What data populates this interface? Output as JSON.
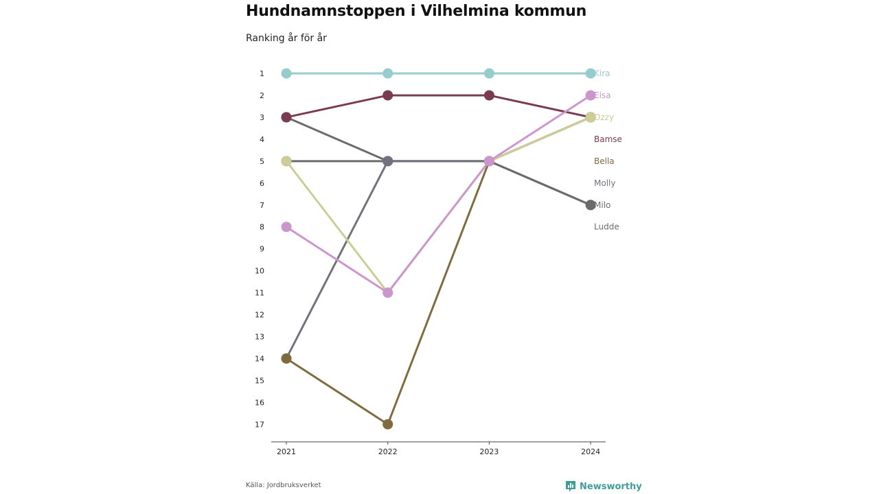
{
  "title": "Hundnamnstoppen i Vilhelmina kommun",
  "subtitle": "Ranking år för år",
  "source": "Källa: Jordbruksverket",
  "brand": {
    "name": "Newsworthy",
    "icon": "bar-chart-icon",
    "color": "#3f9e97"
  },
  "chart_data": {
    "type": "line",
    "subtype": "bump",
    "title": "Hundnamnstoppen i Vilhelmina kommun",
    "subtitle": "Ranking år för år",
    "x": [
      "2021",
      "2022",
      "2023",
      "2024"
    ],
    "y_reversed": true,
    "ylim": [
      1,
      17
    ],
    "y_ticks": [
      "1",
      "2",
      "3",
      "4",
      "5",
      "6",
      "7",
      "8",
      "9",
      "10",
      "11",
      "12",
      "13",
      "14",
      "15",
      "16",
      "17"
    ],
    "grid": false,
    "legend": "direct-labels-right",
    "series": [
      {
        "name": "Kira",
        "color": "#96cccc",
        "values": [
          1,
          1,
          1,
          1
        ]
      },
      {
        "name": "Elsa",
        "color": "#cc96cc",
        "values": [
          8,
          11,
          5,
          2
        ]
      },
      {
        "name": "Ozzy",
        "color": "#cccc96",
        "values": [
          5,
          11,
          5,
          3
        ]
      },
      {
        "name": "Bamse",
        "color": "#7a3b50",
        "values": [
          3,
          2,
          2,
          3
        ]
      },
      {
        "name": "Bella",
        "color": "#806b40",
        "values": [
          14,
          17,
          5,
          3
        ]
      },
      {
        "name": "Molly",
        "color": "#72727e",
        "values": [
          14,
          5,
          5,
          3
        ]
      },
      {
        "name": "Milo",
        "color": "#6b6b6b",
        "values": [
          5,
          5,
          5,
          7
        ]
      },
      {
        "name": "Ludde",
        "color": "#6b6b6b",
        "values": [
          3,
          5,
          5,
          7
        ]
      }
    ],
    "end_labels": [
      {
        "name": "Kira",
        "rank": 1,
        "color": "#96cccc"
      },
      {
        "name": "Elsa",
        "rank": 2,
        "color": "#cc96cc"
      },
      {
        "name": "Ozzy",
        "rank": 3,
        "color": "#cccc96"
      },
      {
        "name": "Bamse",
        "rank": 4,
        "color": "#7a3b50"
      },
      {
        "name": "Bella",
        "rank": 5,
        "color": "#806b40"
      },
      {
        "name": "Molly",
        "rank": 6,
        "color": "#72727e"
      },
      {
        "name": "Milo",
        "rank": 7,
        "color": "#6b6b6b"
      },
      {
        "name": "Ludde",
        "rank": 8,
        "color": "#6b6b6b"
      }
    ]
  }
}
